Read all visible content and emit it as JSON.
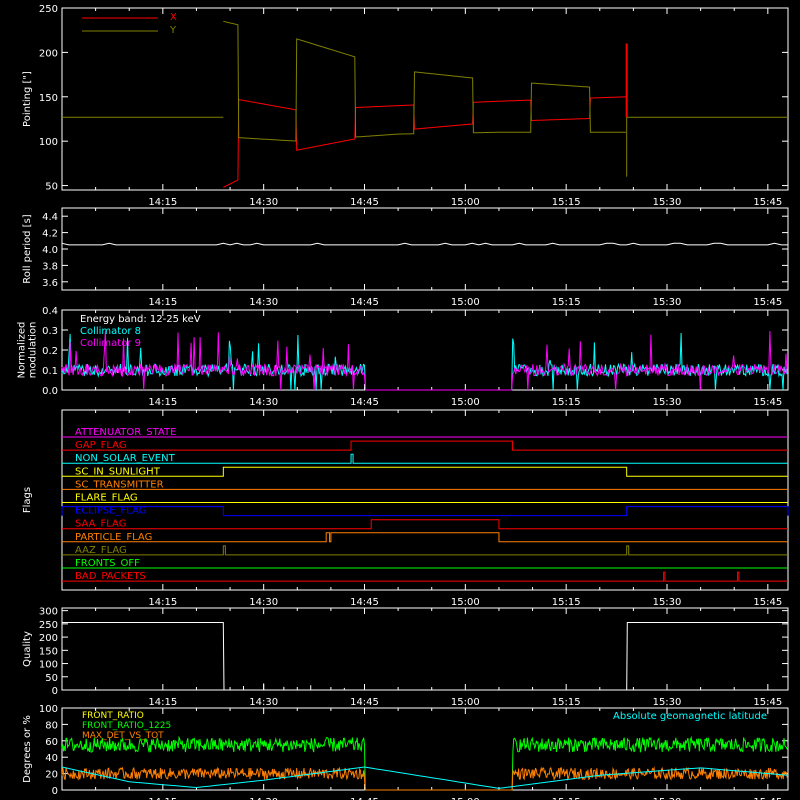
{
  "time_ticks": [
    "14:15",
    "14:30",
    "14:45",
    "15:00",
    "15:15",
    "15:30",
    "15:45"
  ],
  "colors": {
    "background": "#000000",
    "axes": "#ffffff",
    "red": "#ff0000",
    "olive": "#808000",
    "cyan": "#00ffff",
    "magenta": "#ff00ff",
    "white": "#ffffff",
    "orange": "#ff8000",
    "yellow": "#ffff00",
    "blue": "#0000ff",
    "green": "#00ff00",
    "green_bright": "#00ff00",
    "orange_flag": "#ff8c00"
  },
  "chart_data": [
    {
      "type": "line",
      "ylabel": "Pointing [\"]",
      "ylim": [
        45,
        250
      ],
      "yticks": [
        "50",
        "100",
        "150",
        "200",
        "250"
      ],
      "legend": {
        "placement": "top-left",
        "entries": [
          {
            "name": "X",
            "color": "#ff0000"
          },
          {
            "name": "Y",
            "color": "#808000"
          }
        ]
      },
      "series": [
        {
          "name": "X",
          "color": "#ff0000",
          "baseline": 127,
          "start": "14:24",
          "end": "15:24",
          "envelope_low_x": [
            [
              "14:24",
              48
            ],
            [
              "14:35",
              90
            ],
            [
              "14:50",
              112
            ],
            [
              "15:05",
              122
            ],
            [
              "15:24",
              127
            ]
          ],
          "envelope_high_x": [
            [
              "14:24",
              150
            ],
            [
              "14:35",
              135
            ],
            [
              "14:50",
              140
            ],
            [
              "15:05",
              145
            ],
            [
              "15:24",
              150
            ]
          ],
          "spike": [
            [
              "15:24",
              210
            ]
          ]
        },
        {
          "name": "Y",
          "color": "#808000",
          "baseline": 127,
          "start": "14:24",
          "end": "15:24",
          "envelope_low_y": [
            [
              "14:24",
              105
            ],
            [
              "14:35",
              100
            ],
            [
              "14:50",
              108
            ],
            [
              "15:05",
              110
            ],
            [
              "15:24",
              110
            ]
          ],
          "envelope_high_y": [
            [
              "14:24",
              235
            ],
            [
              "14:35",
              215
            ],
            [
              "14:50",
              180
            ],
            [
              "15:05",
              168
            ],
            [
              "15:24",
              158
            ]
          ]
        }
      ]
    },
    {
      "type": "line",
      "ylabel": "Roll period [s]",
      "ylim": [
        3.5,
        4.5
      ],
      "yticks": [
        "3.6",
        "3.8",
        "4.0",
        "4.2",
        "4.4"
      ],
      "series": [
        {
          "name": "",
          "color": "#ffffff",
          "value": 4.05
        }
      ]
    },
    {
      "type": "line",
      "ylabel": "Normalized modulation",
      "ylim": [
        0.0,
        0.4
      ],
      "yticks": [
        "0.0",
        "0.1",
        "0.2",
        "0.3",
        "0.4"
      ],
      "annotation": "Energy band: 12-25 keV",
      "legend": {
        "placement": "top-left",
        "entries": [
          {
            "name": "Collimator 8",
            "color": "#00ffff"
          },
          {
            "name": "Collimator 9",
            "color": "#ff00ff"
          }
        ]
      },
      "gaps": [
        [
          "14:45",
          "15:07"
        ]
      ],
      "series": [
        {
          "name": "Collimator 8",
          "color": "#00ffff",
          "typical": 0.1
        },
        {
          "name": "Collimator 9",
          "color": "#ff00ff",
          "typical": 0.1
        }
      ]
    },
    {
      "type": "line",
      "ylabel": "Flags",
      "flags": [
        {
          "name": "ATTENUATOR_STATE",
          "color": "#ff00ff",
          "high": []
        },
        {
          "name": "GAP_FLAG",
          "color": "#ff0000",
          "high": [
            [
              "14:43",
              "15:07"
            ]
          ]
        },
        {
          "name": "NON_SOLAR_EVENT",
          "color": "#00ffff",
          "high": [
            [
              "14:43",
              "14:43.3"
            ]
          ]
        },
        {
          "name": "SC_IN_SUNLIGHT",
          "color": "#ffff00",
          "high": [
            [
              "14:24",
              "15:24"
            ]
          ]
        },
        {
          "name": "SC_TRANSMITTER",
          "color": "#ff8000",
          "high": []
        },
        {
          "name": "FLARE_FLAG",
          "color": "#ffff00",
          "high": []
        },
        {
          "name": "ECLIPSE_FLAG",
          "color": "#0000ff",
          "high": [
            [
              "14:00",
              "14:24"
            ],
            [
              "15:24",
              "15:48"
            ]
          ]
        },
        {
          "name": "SAA_FLAG",
          "color": "#ff0000",
          "high": [
            [
              "14:46",
              "15:05"
            ]
          ]
        },
        {
          "name": "PARTICLE_FLAG",
          "color": "#ff8000",
          "high": [
            [
              "14:39.3",
              "14:39.8"
            ],
            [
              "14:40",
              "15:05"
            ]
          ]
        },
        {
          "name": "AAZ_FLAG",
          "color": "#808000",
          "high": [
            [
              "14:24",
              "14:24.3"
            ],
            [
              "15:24",
              "15:24.3"
            ]
          ]
        },
        {
          "name": "FRONTS_OFF",
          "color": "#00ff00",
          "high": []
        },
        {
          "name": "BAD_PACKETS",
          "color": "#ff0000",
          "high": [
            [
              "15:29.5",
              "15:29.7"
            ],
            [
              "15:40.5",
              "15:40.7"
            ]
          ]
        }
      ]
    },
    {
      "type": "line",
      "ylabel": "Quality",
      "ylim": [
        0,
        310
      ],
      "yticks": [
        "0",
        "50",
        "100",
        "150",
        "200",
        "250",
        "300"
      ],
      "series": [
        {
          "name": "",
          "color": "#ffffff",
          "points": [
            [
              "14:00",
              255
            ],
            [
              "14:24",
              255
            ],
            [
              "14:24.1",
              0
            ],
            [
              "15:24",
              0
            ],
            [
              "15:24.1",
              255
            ],
            [
              "15:48",
              255
            ]
          ]
        }
      ]
    },
    {
      "type": "line",
      "ylabel": "Degrees or %",
      "ylim": [
        0,
        100
      ],
      "yticks": [
        "0",
        "20",
        "40",
        "60",
        "80",
        "100"
      ],
      "legend": {
        "placement": "top-left",
        "entries": [
          {
            "name": "FRONT_RATIO",
            "color": "#ffff00"
          },
          {
            "name": "FRONT_RATIO_1225",
            "color": "#00ff00"
          },
          {
            "name": "MAX_DET_VS_TOT",
            "color": "#ff8000"
          }
        ]
      },
      "annotation": "Absolute geomagnetic latitude",
      "gaps": [
        [
          "14:45",
          "15:07"
        ]
      ],
      "series": [
        {
          "name": "FRONT_RATIO_1225",
          "color": "#00ff00",
          "typical": 55
        },
        {
          "name": "MAX_DET_VS_TOT",
          "color": "#ff8000",
          "typical": 20
        },
        {
          "name": "Absolute geomagnetic latitude",
          "color": "#00ffff",
          "points": [
            [
              "14:00",
              28
            ],
            [
              "14:10",
              10
            ],
            [
              "14:20",
              3
            ],
            [
              "14:30",
              12
            ],
            [
              "14:45",
              28
            ],
            [
              "15:05",
              2
            ],
            [
              "15:20",
              18
            ],
            [
              "15:35",
              27
            ],
            [
              "15:48",
              18
            ]
          ]
        }
      ]
    }
  ]
}
